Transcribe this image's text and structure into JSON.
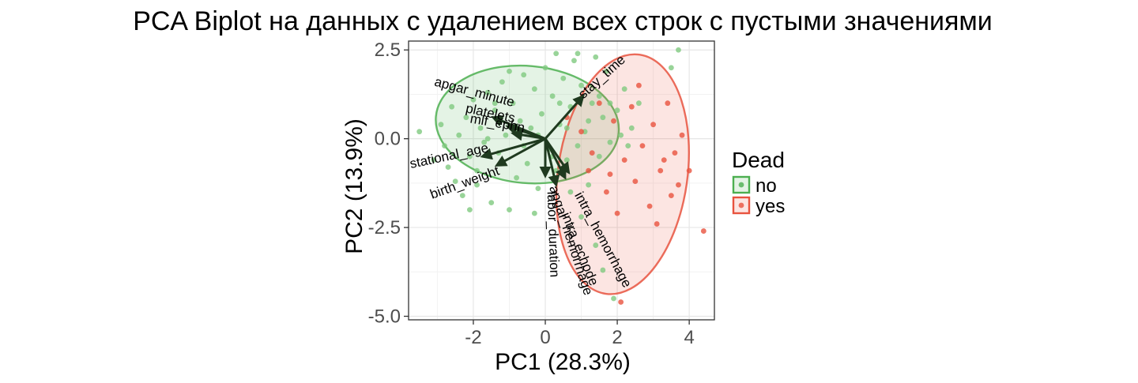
{
  "chart_data": {
    "type": "scatter",
    "title": "PCA Biplot на данных с удалением всех строк с пустыми значениями",
    "xlabel": "PC1 (28.3%)",
    "ylabel": "PC2 (13.9%)",
    "xlim": [
      -3.8,
      4.7
    ],
    "ylim": [
      -5.1,
      2.75
    ],
    "x_ticks": [
      -2,
      0,
      2,
      4
    ],
    "x_tick_labels": [
      "-2",
      "0",
      "2",
      "4"
    ],
    "y_ticks": [
      -5.0,
      -2.5,
      0.0,
      2.5
    ],
    "y_tick_labels": [
      "-5.0",
      "-2.5",
      "0.0",
      "2.5"
    ],
    "grid": true,
    "legend": {
      "title": "Dead",
      "position": "right",
      "entries": [
        {
          "label": "no",
          "color": "#4caf50"
        },
        {
          "label": "yes",
          "color": "#e8533f"
        }
      ]
    },
    "series": [
      {
        "name": "no",
        "color": "#7fc97f",
        "points": [
          [
            -3.5,
            0.2
          ],
          [
            -3.1,
            -0.6
          ],
          [
            -2.9,
            0.4
          ],
          [
            -2.8,
            -0.2
          ],
          [
            -2.6,
            0.9
          ],
          [
            -2.5,
            -1.2
          ],
          [
            -2.4,
            0.1
          ],
          [
            -2.3,
            -1.6
          ],
          [
            -2.2,
            0.6
          ],
          [
            -2.1,
            -0.5
          ],
          [
            -2.0,
            1.1
          ],
          [
            -1.9,
            -0.9
          ],
          [
            -1.8,
            0.3
          ],
          [
            -1.7,
            -0.1
          ],
          [
            -1.6,
            1.3
          ],
          [
            -1.5,
            -1.8
          ],
          [
            -1.4,
            0.8
          ],
          [
            -1.3,
            -0.4
          ],
          [
            -1.2,
            1.6
          ],
          [
            -1.1,
            0.1
          ],
          [
            -1.0,
            -2.0
          ],
          [
            -0.9,
            1.0
          ],
          [
            -0.8,
            -1.1
          ],
          [
            -0.7,
            0.5
          ],
          [
            -0.6,
            1.8
          ],
          [
            -0.5,
            -0.7
          ],
          [
            -0.4,
            0.3
          ],
          [
            -0.3,
            1.4
          ],
          [
            -0.2,
            -1.4
          ],
          [
            -0.1,
            0.7
          ],
          [
            0.0,
            2.0
          ],
          [
            0.1,
            -0.3
          ],
          [
            0.2,
            1.2
          ],
          [
            0.3,
            -0.9
          ],
          [
            0.4,
            0.4
          ],
          [
            0.5,
            1.7
          ],
          [
            0.6,
            -0.6
          ],
          [
            0.7,
            0.9
          ],
          [
            0.8,
            2.2
          ],
          [
            0.9,
            -0.2
          ],
          [
            1.0,
            1.5
          ],
          [
            1.1,
            0.2
          ],
          [
            1.2,
            -1.3
          ],
          [
            1.3,
            1.0
          ],
          [
            1.4,
            2.3
          ],
          [
            1.5,
            -0.5
          ],
          [
            1.6,
            0.6
          ],
          [
            1.7,
            1.9
          ],
          [
            1.8,
            -0.1
          ],
          [
            2.0,
            0.8
          ],
          [
            2.2,
            1.4
          ],
          [
            2.4,
            0.3
          ],
          [
            -1.9,
            -1.3
          ],
          [
            -2.7,
            -0.8
          ],
          [
            -1.6,
            0.0
          ],
          [
            -0.8,
            0.2
          ],
          [
            0.6,
            0.3
          ],
          [
            1.0,
            -2.2
          ],
          [
            1.4,
            -3.0
          ],
          [
            1.9,
            -4.5
          ],
          [
            1.6,
            -3.7
          ],
          [
            3.5,
            2.0
          ],
          [
            3.7,
            2.5
          ],
          [
            -0.3,
            -2.1
          ],
          [
            2.6,
            1.0
          ],
          [
            -1.0,
            1.9
          ],
          [
            0.3,
            2.4
          ],
          [
            -2.1,
            -2.0
          ],
          [
            0.9,
            2.4
          ],
          [
            1.5,
            1.2
          ],
          [
            -0.2,
            0.1
          ],
          [
            0.2,
            -0.5
          ],
          [
            2.1,
            0.1
          ],
          [
            -1.4,
            1.0
          ],
          [
            0.7,
            -1.5
          ],
          [
            1.2,
            0.5
          ],
          [
            1.8,
            1.0
          ],
          [
            2.3,
            -0.2
          ],
          [
            0.4,
            1.0
          ],
          [
            -0.6,
            -0.2
          ]
        ]
      },
      {
        "name": "yes",
        "color": "#e8533f",
        "points": [
          [
            0.6,
            0.6
          ],
          [
            1.0,
            0.2
          ],
          [
            1.2,
            -0.9
          ],
          [
            1.5,
            1.0
          ],
          [
            1.7,
            -1.5
          ],
          [
            1.9,
            0.5
          ],
          [
            2.0,
            -2.1
          ],
          [
            2.2,
            -0.6
          ],
          [
            2.4,
            0.9
          ],
          [
            2.5,
            -1.2
          ],
          [
            2.7,
            -0.2
          ],
          [
            2.9,
            -1.9
          ],
          [
            3.0,
            0.4
          ],
          [
            3.1,
            -2.4
          ],
          [
            3.2,
            -0.9
          ],
          [
            3.4,
            1.0
          ],
          [
            3.5,
            -1.6
          ],
          [
            3.6,
            -0.4
          ],
          [
            3.7,
            -1.3
          ],
          [
            3.8,
            0.1
          ],
          [
            4.0,
            -0.9
          ],
          [
            4.4,
            -2.6
          ],
          [
            2.1,
            -4.6
          ],
          [
            1.3,
            -0.4
          ],
          [
            2.6,
            1.5
          ],
          [
            3.3,
            -0.6
          ],
          [
            1.8,
            -1.0
          ]
        ]
      }
    ],
    "ellipses": [
      {
        "group": "no",
        "cx": -0.5,
        "cy": 0.4,
        "rx": 2.55,
        "ry": 1.65,
        "angle": 5
      },
      {
        "group": "yes",
        "cx": 2.15,
        "cy": -1.0,
        "rx": 1.8,
        "ry": 3.4,
        "angle": 8
      }
    ],
    "loadings": [
      {
        "name": "apgar_minute",
        "x": -1.45,
        "y": 0.6,
        "label_angle": 15
      },
      {
        "name": "platelets",
        "x": -1.05,
        "y": 0.35,
        "label_angle": 12
      },
      {
        "name": "mlf_ephn",
        "x": -0.9,
        "y": 0.15,
        "label_angle": 10
      },
      {
        "name": "gestational_age",
        "x": -1.75,
        "y": -0.5,
        "label_angle": -12
      },
      {
        "name": "birth_weight",
        "x": -1.35,
        "y": -0.75,
        "label_angle": -20
      },
      {
        "name": "stay_time",
        "x": 1.05,
        "y": 1.2,
        "label_angle": -42
      },
      {
        "name": "labor_duration",
        "x": 0.0,
        "y": -1.05,
        "label_angle": 88
      },
      {
        "name": "apgar_hemorrhage",
        "x": 0.3,
        "y": -1.3,
        "label_angle": 72
      },
      {
        "name": "intra_echode",
        "x": 0.55,
        "y": -1.1,
        "label_angle": 68
      },
      {
        "name": "intra_hemorrhage",
        "x": 0.65,
        "y": -0.95,
        "label_angle": 62
      }
    ],
    "loading_labels": [
      {
        "text": "apgar_minute",
        "x": -2.0,
        "y": 1.2,
        "angle": 15
      },
      {
        "text": "platelets",
        "x": -1.55,
        "y": 0.6,
        "angle": 12
      },
      {
        "text": "mlf_ephn",
        "x": -1.35,
        "y": 0.32,
        "angle": 10
      },
      {
        "text": "stational_age",
        "x": -2.65,
        "y": -0.6,
        "angle": -12
      },
      {
        "text": "birth_weight",
        "x": -2.2,
        "y": -1.35,
        "angle": -20
      },
      {
        "text": "stay_time",
        "x": 1.65,
        "y": 1.65,
        "angle": -42
      },
      {
        "text": "labor_duration",
        "x": 0.1,
        "y": -2.7,
        "angle": 88
      },
      {
        "text": "apgar_hemorrhage",
        "x": 0.6,
        "y": -2.9,
        "angle": 72
      },
      {
        "text": "intra_echode",
        "x": 0.85,
        "y": -3.15,
        "angle": 68
      },
      {
        "text": "intra_hemorrhage",
        "x": 1.5,
        "y": -2.9,
        "angle": 62
      }
    ]
  }
}
